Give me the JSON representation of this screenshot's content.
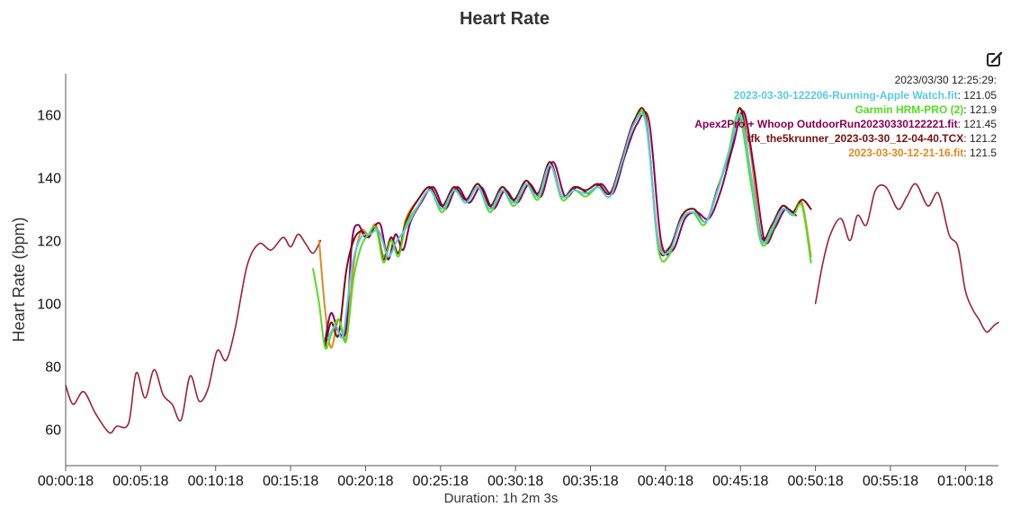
{
  "chart_data": {
    "type": "line",
    "title": "Heart Rate",
    "xlabel": "Duration: 1h 2m 3s",
    "ylabel": "Heart Rate (bpm)",
    "x_unit": "minutes",
    "xlim": [
      0.3,
      62.5
    ],
    "ylim": [
      48.5,
      173
    ],
    "x_tick_values": [
      0.3,
      5.3,
      10.3,
      15.3,
      20.3,
      25.3,
      30.3,
      35.3,
      40.3,
      45.3,
      50.3,
      55.3,
      60.3
    ],
    "x_tick_labels": [
      "00:00:18",
      "00:05:18",
      "00:10:18",
      "00:15:18",
      "00:20:18",
      "00:25:18",
      "00:30:18",
      "00:35:18",
      "00:40:18",
      "00:45:18",
      "00:50:18",
      "00:55:18",
      "01:00:18"
    ],
    "y_ticks": [
      60,
      80,
      100,
      120,
      140,
      160
    ],
    "grid": false,
    "legend": "none",
    "tooltip": {
      "timestamp": "2023/03/30 12:25:29:",
      "entries": [
        {
          "name": "2023-03-30-122206-Running-Apple Watch.fit",
          "value": "121.05",
          "color": "#5bc8e8"
        },
        {
          "name": "Garmin HRM-PRO (2)",
          "value": "121.9",
          "color": "#55dd22"
        },
        {
          "name": "Apex2Pro + Whoop OutdoorRun20230330122221.fit",
          "value": "121.45",
          "color": "#880055"
        },
        {
          "name": "tfk_the5krunner_2023-03-30_12-04-40.TCX",
          "value": "121.2",
          "color": "#771111"
        },
        {
          "name": "2023-03-30-12-21-16.fit",
          "value": "121.5",
          "color": "#e08a1e"
        }
      ]
    },
    "series": [
      {
        "color": "#9b2335",
        "x": [
          0.3,
          0.8,
          1.5,
          2.3,
          3.2,
          3.7,
          4.5,
          5.0,
          5.6,
          6.2,
          6.8,
          7.4,
          8.0,
          8.6,
          9.2,
          9.8,
          10.4,
          11.0,
          11.6,
          12.4,
          13.2,
          14.0,
          14.8,
          15.3,
          15.8,
          16.3,
          16.8,
          17.3
        ],
        "y": [
          74,
          68,
          72,
          65,
          59,
          61,
          62,
          78,
          70,
          79,
          71,
          68,
          63,
          77,
          69,
          73,
          85,
          82,
          92,
          112,
          119,
          117,
          121,
          118,
          122,
          119,
          116,
          120
        ]
      },
      {
        "color": "#9b2335",
        "x": [
          50.3,
          50.8,
          51.3,
          52.0,
          52.6,
          53.1,
          53.7,
          54.3,
          55.0,
          55.8,
          56.4,
          57.0,
          57.8,
          58.5,
          59.2,
          59.8,
          60.3,
          60.8,
          61.2,
          61.7,
          62.2,
          62.5
        ],
        "y": [
          100,
          113,
          122,
          127,
          120,
          128,
          125,
          136,
          137,
          130,
          134,
          138,
          131,
          135,
          122,
          118,
          104,
          98,
          95,
          91,
          93,
          94
        ]
      },
      {
        "name": "2023-03-30-12-21-16.fit",
        "color": "#e08a1e",
        "x": [
          17.2,
          17.6,
          18.0,
          18.5,
          19.0,
          19.5,
          20.0,
          20.5,
          21.0,
          21.5,
          22.0,
          22.5,
          23.0,
          23.8,
          24.6,
          25.4,
          26.2,
          27.0,
          27.8,
          28.6,
          29.4,
          30.2,
          31.0,
          31.8,
          32.6,
          33.4,
          34.2,
          35.0,
          35.8,
          36.6,
          37.4,
          38.2,
          39.0,
          39.8,
          40.6,
          41.4,
          42.2,
          43.0,
          43.8,
          44.6,
          45.3,
          46.0,
          46.7,
          47.4,
          48.1,
          48.8,
          49.4,
          50.0
        ],
        "y": [
          120,
          98,
          86,
          95,
          89,
          112,
          123,
          122,
          125,
          115,
          121,
          116,
          127,
          133,
          137,
          131,
          137,
          133,
          138,
          131,
          137,
          133,
          139,
          135,
          145,
          134,
          137,
          136,
          138,
          135,
          146,
          158,
          158,
          121,
          118,
          128,
          130,
          126,
          137,
          148,
          162,
          147,
          121,
          125,
          131,
          129,
          132,
          115
        ]
      },
      {
        "name": "Apex2Pro + Whoop OutdoorRun20230330122221.fit",
        "color": "#880055",
        "x": [
          17.6,
          18.0,
          18.5,
          19.0,
          19.4,
          19.8,
          20.3,
          20.8,
          21.3,
          21.8,
          22.3,
          22.8,
          23.3,
          24.0,
          24.8,
          25.6,
          26.4,
          27.2,
          28.0,
          28.8,
          29.6,
          30.4,
          31.2,
          32.0,
          32.8,
          33.6,
          34.4,
          35.2,
          36.0,
          36.8,
          37.6,
          38.4,
          39.2,
          40.0,
          40.8,
          41.6,
          42.4,
          43.2,
          44.0,
          44.8,
          45.5,
          46.2,
          46.9,
          47.6,
          48.3,
          49.0
        ],
        "y": [
          88,
          97,
          91,
          92,
          120,
          125,
          121,
          124,
          125,
          114,
          122,
          117,
          126,
          132,
          137,
          130,
          137,
          132,
          137,
          130,
          136,
          132,
          138,
          134,
          145,
          134,
          137,
          135,
          138,
          135,
          147,
          157,
          158,
          120,
          117,
          127,
          129,
          127,
          136,
          150,
          161,
          143,
          120,
          124,
          130,
          128
        ]
      },
      {
        "name": "tfk_the5krunner_2023-03-30_12-04-40.TCX",
        "color": "#771111",
        "x": [
          17.6,
          18.0,
          18.5,
          19.0,
          19.5,
          20.0,
          20.5,
          21.0,
          21.5,
          22.0,
          22.5,
          23.0,
          23.8,
          24.6,
          25.4,
          26.2,
          27.0,
          27.8,
          28.6,
          29.4,
          30.2,
          31.0,
          31.8,
          32.6,
          33.4,
          34.2,
          35.0,
          35.8,
          36.6,
          37.4,
          38.2,
          39.0,
          39.8,
          40.6,
          41.4,
          42.2,
          43.0,
          43.8,
          44.6,
          45.3,
          46.0,
          46.7,
          47.4,
          48.1,
          48.8,
          49.4,
          50.0
        ],
        "y": [
          86,
          94,
          90,
          110,
          120,
          123,
          121,
          124,
          114,
          121,
          116,
          126,
          133,
          137,
          131,
          137,
          133,
          138,
          131,
          137,
          133,
          139,
          135,
          145,
          134,
          137,
          136,
          138,
          135,
          146,
          158,
          159,
          119,
          118,
          128,
          130,
          126,
          137,
          148,
          162,
          140,
          121,
          125,
          131,
          129,
          133,
          130
        ]
      },
      {
        "name": "Garmin HRM-PRO (2)",
        "color": "#55dd22",
        "x": [
          16.8,
          17.2,
          17.6,
          18.0,
          18.5,
          19.0,
          19.5,
          20.0,
          20.5,
          21.0,
          21.5,
          22.0,
          22.5,
          23.0,
          23.8,
          24.6,
          25.4,
          26.2,
          27.0,
          27.8,
          28.6,
          29.4,
          30.2,
          31.0,
          31.8,
          32.6,
          33.4,
          34.2,
          35.0,
          35.8,
          36.6,
          37.4,
          38.2,
          39.0,
          39.8,
          40.5,
          41.3,
          42.1,
          42.9,
          43.7,
          44.5,
          45.2,
          46.0,
          46.7,
          47.4,
          48.1,
          48.8,
          49.4,
          50.0
        ],
        "y": [
          111,
          100,
          86,
          90,
          95,
          88,
          108,
          118,
          122,
          124,
          113,
          120,
          115,
          125,
          131,
          136,
          129,
          136,
          132,
          137,
          129,
          136,
          131,
          138,
          133,
          144,
          133,
          136,
          134,
          137,
          134,
          145,
          157,
          158,
          118,
          115,
          126,
          129,
          125,
          135,
          148,
          160,
          138,
          119,
          123,
          130,
          128,
          131,
          113
        ]
      },
      {
        "name": "2023-03-30-122206-Running-Apple Watch.fit",
        "color": "#5bc8e8",
        "x": [
          17.8,
          18.3,
          18.8,
          19.4,
          20.0,
          20.6,
          21.2,
          21.8,
          22.4,
          23.0,
          23.8,
          24.6,
          25.4,
          26.2,
          27.0,
          27.8,
          28.6,
          29.4,
          30.2,
          31.0,
          31.8,
          32.6,
          33.4,
          34.2,
          35.0,
          35.8,
          36.6,
          37.4,
          38.2,
          39.0,
          39.8,
          40.6,
          41.4,
          42.2,
          43.0,
          43.8,
          44.6,
          45.3,
          46.0,
          46.7,
          47.4,
          48.1,
          48.8
        ],
        "y": [
          89,
          93,
          90,
          112,
          121,
          122,
          123,
          115,
          120,
          124,
          131,
          136,
          130,
          136,
          132,
          137,
          130,
          136,
          132,
          138,
          134,
          144,
          134,
          136,
          135,
          137,
          134,
          145,
          157,
          157,
          120,
          117,
          127,
          129,
          126,
          136,
          149,
          160,
          141,
          120,
          124,
          130,
          128
        ]
      }
    ]
  }
}
